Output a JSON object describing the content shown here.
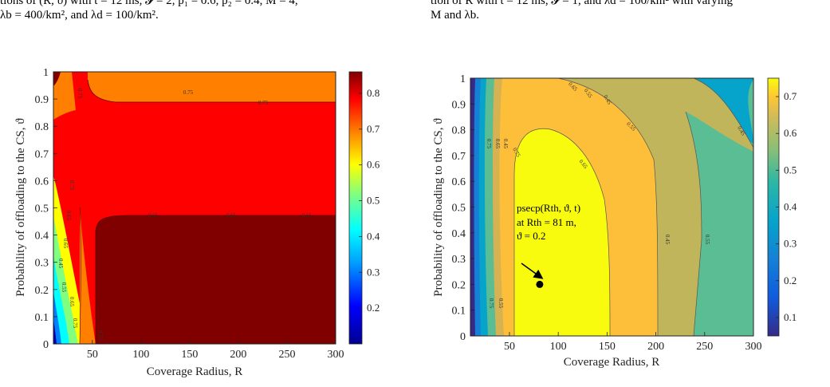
{
  "captions": {
    "left_line1": "tions of (R, ϑ) with t = 12 ms, 𝓘 = 2, p₁ = 0.6, p₂ = 0.4, M = 4,",
    "left_line2": "λb = 400/km², and λd = 100/km².",
    "right_line1": "tion of R with t = 12 ms, 𝓘 = 1, and λd = 100/km² with varying",
    "right_line2": "M and λb."
  },
  "chart_data": [
    {
      "type": "heatmap",
      "plot": "filled-contour",
      "title": "",
      "xlabel": "Coverage Radius, R",
      "ylabel": "Probability of offloading to the CS, ϑ",
      "xlim": [
        10,
        300
      ],
      "ylim": [
        0,
        1
      ],
      "x_ticks": [
        "50",
        "100",
        "150",
        "200",
        "250",
        "300"
      ],
      "y_ticks": [
        "0",
        "0.1",
        "0.2",
        "0.3",
        "0.4",
        "0.5",
        "0.6",
        "0.7",
        "0.8",
        "0.9",
        "1"
      ],
      "colormap": "jet",
      "colorbar_ticks": [
        "0.2",
        "0.3",
        "0.4",
        "0.5",
        "0.6",
        "0.7",
        "0.8"
      ],
      "colorbar_range": [
        0.1,
        0.86
      ],
      "contour_labels": [
        "0.75",
        "0.75",
        "0.75",
        "0.65",
        "0.65",
        "0.65",
        "0.75",
        "0.65",
        "0.65",
        "0.45",
        "0.55",
        "0.65",
        "0.75",
        "0.75"
      ],
      "region_levels": [
        {
          "region": "top-right band (ϑ > 0.88, R > 60)",
          "value": 0.7
        },
        {
          "region": "middle red region",
          "value": 0.8
        },
        {
          "region": "bottom-right block (ϑ < 0.47, R > 60)",
          "value": 0.85
        },
        {
          "region": "top-left corner",
          "value": 0.86
        }
      ]
    },
    {
      "type": "heatmap",
      "plot": "filled-contour",
      "title": "",
      "xlabel": "Coverage Radius, R",
      "ylabel": "Probability of offloading to the CS, ϑ",
      "xlim": [
        10,
        300
      ],
      "ylim": [
        0,
        1
      ],
      "x_ticks": [
        "50",
        "100",
        "150",
        "200",
        "250",
        "300"
      ],
      "y_ticks": [
        "0",
        "0.1",
        "0.2",
        "0.3",
        "0.4",
        "0.5",
        "0.6",
        "0.7",
        "0.8",
        "0.9",
        "1"
      ],
      "colormap": "parula",
      "colorbar_ticks": [
        "0.1",
        "0.2",
        "0.3",
        "0.4",
        "0.5",
        "0.6",
        "0.7"
      ],
      "colorbar_range": [
        0.05,
        0.75
      ],
      "contour_labels": [
        "0.65",
        "0.55",
        "0.45",
        "0.75",
        "0.75",
        "0.65",
        "0.55",
        "0.45",
        "0.75",
        "0.65",
        "0.55",
        "0.45",
        "0.55",
        "0.45"
      ],
      "marker": {
        "x": 81,
        "y": 0.2
      },
      "annotation": {
        "line1": "psecp(Rth, ϑ, t)",
        "line2": "at Rth = 81 m,",
        "line3": "ϑ = 0.2"
      }
    }
  ]
}
